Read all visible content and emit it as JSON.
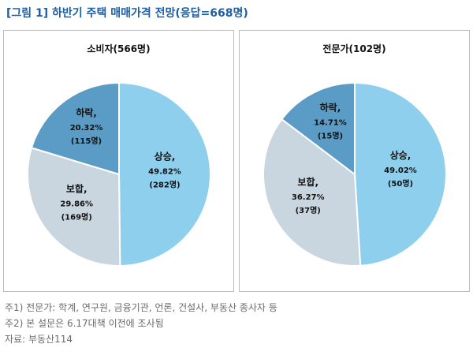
{
  "figure_title": "[그림 1] 하반기 주택 매매가격 전망(응답=668명)",
  "chart_data": [
    {
      "type": "pie",
      "title": "소비자(566명)",
      "slices": [
        {
          "name": "상승,",
          "percent_label": "49.82%",
          "count_label": "(282명)",
          "value": 49.82,
          "color": "#8ecfee"
        },
        {
          "name": "보합,",
          "percent_label": "29.86%",
          "count_label": "(169명)",
          "value": 29.86,
          "color": "#c9d6df"
        },
        {
          "name": "하락,",
          "percent_label": "20.32%",
          "count_label": "(115명)",
          "value": 20.32,
          "color": "#5b9cc6"
        }
      ]
    },
    {
      "type": "pie",
      "title": "전문가(102명)",
      "slices": [
        {
          "name": "상승,",
          "percent_label": "49.02%",
          "count_label": "(50명)",
          "value": 49.02,
          "color": "#8ecfee"
        },
        {
          "name": "보합,",
          "percent_label": "36.27%",
          "count_label": "(37명)",
          "value": 36.27,
          "color": "#c9d6df"
        },
        {
          "name": "하락,",
          "percent_label": "14.71%",
          "count_label": "(15명)",
          "value": 14.71,
          "color": "#5b9cc6"
        }
      ]
    }
  ],
  "notes": [
    "주1) 전문가: 학계, 연구원, 금융기관, 언론, 건설사, 부동산 종사자 등",
    "주2) 본 설문은 6.17대책 이전에 조사됨",
    "자료: 부동산114"
  ]
}
